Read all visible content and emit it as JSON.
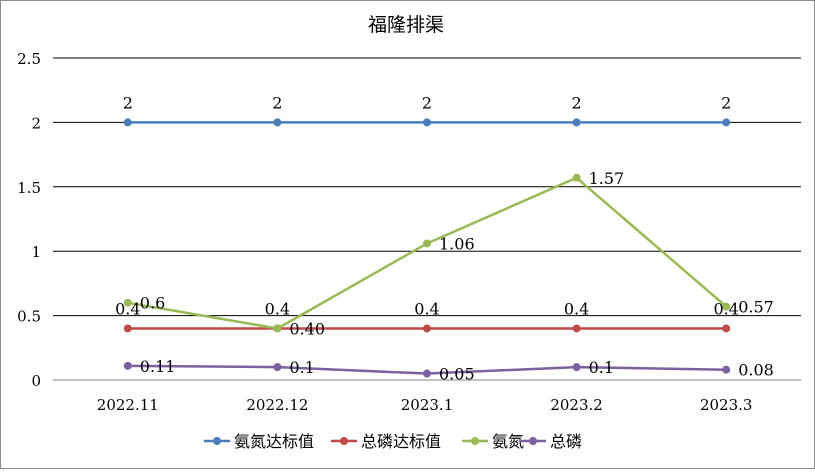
{
  "chart_data": {
    "type": "line",
    "title": "福隆排渠",
    "xlabel": "",
    "ylabel": "",
    "categories": [
      "2022.11",
      "2022.12",
      "2023.1",
      "2023.2",
      "2023.3"
    ],
    "ylim": [
      0,
      2.5
    ],
    "yticks": [
      "0",
      "0.5",
      "1",
      "1.5",
      "2",
      "2.5"
    ],
    "grid": true,
    "legend_position": "bottom",
    "series": [
      {
        "name": "氨氮达标值",
        "color": "#4a7ebb",
        "values": [
          2,
          2,
          2,
          2,
          2
        ],
        "labels": [
          "2",
          "2",
          "2",
          "2",
          "2"
        ]
      },
      {
        "name": "总磷达标值",
        "color": "#be4b48",
        "values": [
          0.4,
          0.4,
          0.4,
          0.4,
          0.4
        ],
        "labels": [
          "0.4",
          "0.4",
          "0.4",
          "0.4",
          "0.4"
        ]
      },
      {
        "name": "氨氮",
        "color": "#98b954",
        "values": [
          0.6,
          0.4,
          1.06,
          1.57,
          0.57
        ],
        "labels": [
          "0.6",
          "0.40",
          "1.06",
          "1.57",
          "0.57"
        ]
      },
      {
        "name": "总磷",
        "color": "#7d60a0",
        "values": [
          0.11,
          0.1,
          0.05,
          0.1,
          0.08
        ],
        "labels": [
          "0.11",
          "0.1",
          "0.05",
          "0.1",
          "0.08"
        ]
      }
    ]
  }
}
